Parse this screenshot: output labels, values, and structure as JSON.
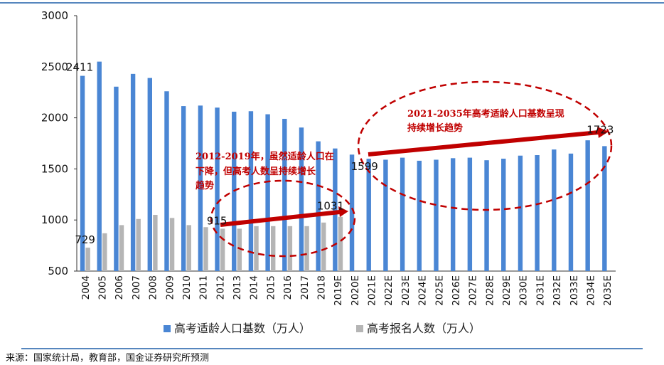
{
  "chart_data": {
    "type": "bar",
    "categories": [
      "2004",
      "2005",
      "2006",
      "2007",
      "2008",
      "2009",
      "2010",
      "2011",
      "2012",
      "2013",
      "2014",
      "2015",
      "2016",
      "2017",
      "2018",
      "2019E",
      "2020E",
      "2021E",
      "2022E",
      "2023E",
      "2024E",
      "2025E",
      "2026E",
      "2027E",
      "2028E",
      "2029E",
      "2030E",
      "2031E",
      "2032E",
      "2033E",
      "2034E",
      "2035E"
    ],
    "series": [
      {
        "name": "高考适龄人口基数（万人）",
        "color": "#4a86d4",
        "values": [
          2411,
          2550,
          2305,
          2430,
          2390,
          2260,
          2115,
          2120,
          2100,
          2060,
          2065,
          2035,
          1990,
          1905,
          1770,
          1700,
          1640,
          1599,
          1590,
          1610,
          1580,
          1590,
          1605,
          1610,
          1585,
          1600,
          1630,
          1635,
          1690,
          1650,
          1780,
          1723
        ]
      },
      {
        "name": "高考报名人数（万人）",
        "color": "#b5b5b5",
        "values": [
          729,
          870,
          950,
          1010,
          1050,
          1020,
          950,
          930,
          915,
          915,
          940,
          940,
          940,
          940,
          975,
          1031,
          null,
          null,
          null,
          null,
          null,
          null,
          null,
          null,
          null,
          null,
          null,
          null,
          null,
          null,
          null,
          null
        ]
      }
    ],
    "ylim": [
      500,
      3000
    ],
    "yticks": [
      "3000",
      "2500",
      "2000",
      "1500",
      "1000",
      "500"
    ],
    "data_labels": [
      {
        "text": "2411",
        "category": "2004",
        "series": 0
      },
      {
        "text": "729",
        "category": "2004",
        "series": 1
      },
      {
        "text": "915",
        "category": "2012",
        "series": 1
      },
      {
        "text": "1031",
        "category": "2019E",
        "series": 1
      },
      {
        "text": "1599",
        "category": "2021E",
        "series": 0
      },
      {
        "text": "1723",
        "category": "2035E",
        "series": 0
      }
    ],
    "annotations": {
      "note_2012_2019": [
        "2012-2019年，虽然适龄人口在",
        "下降，但高考人数呈持续增长",
        "趋势"
      ],
      "note_2021_2035": [
        "2021-2035年高考适龄人口基数呈现",
        "持续增长趋势"
      ]
    },
    "accent_color": "#c00000",
    "grid": false,
    "legend_position": "bottom"
  },
  "source": "来源：国家统计局，教育部，国金证券研究所预测"
}
